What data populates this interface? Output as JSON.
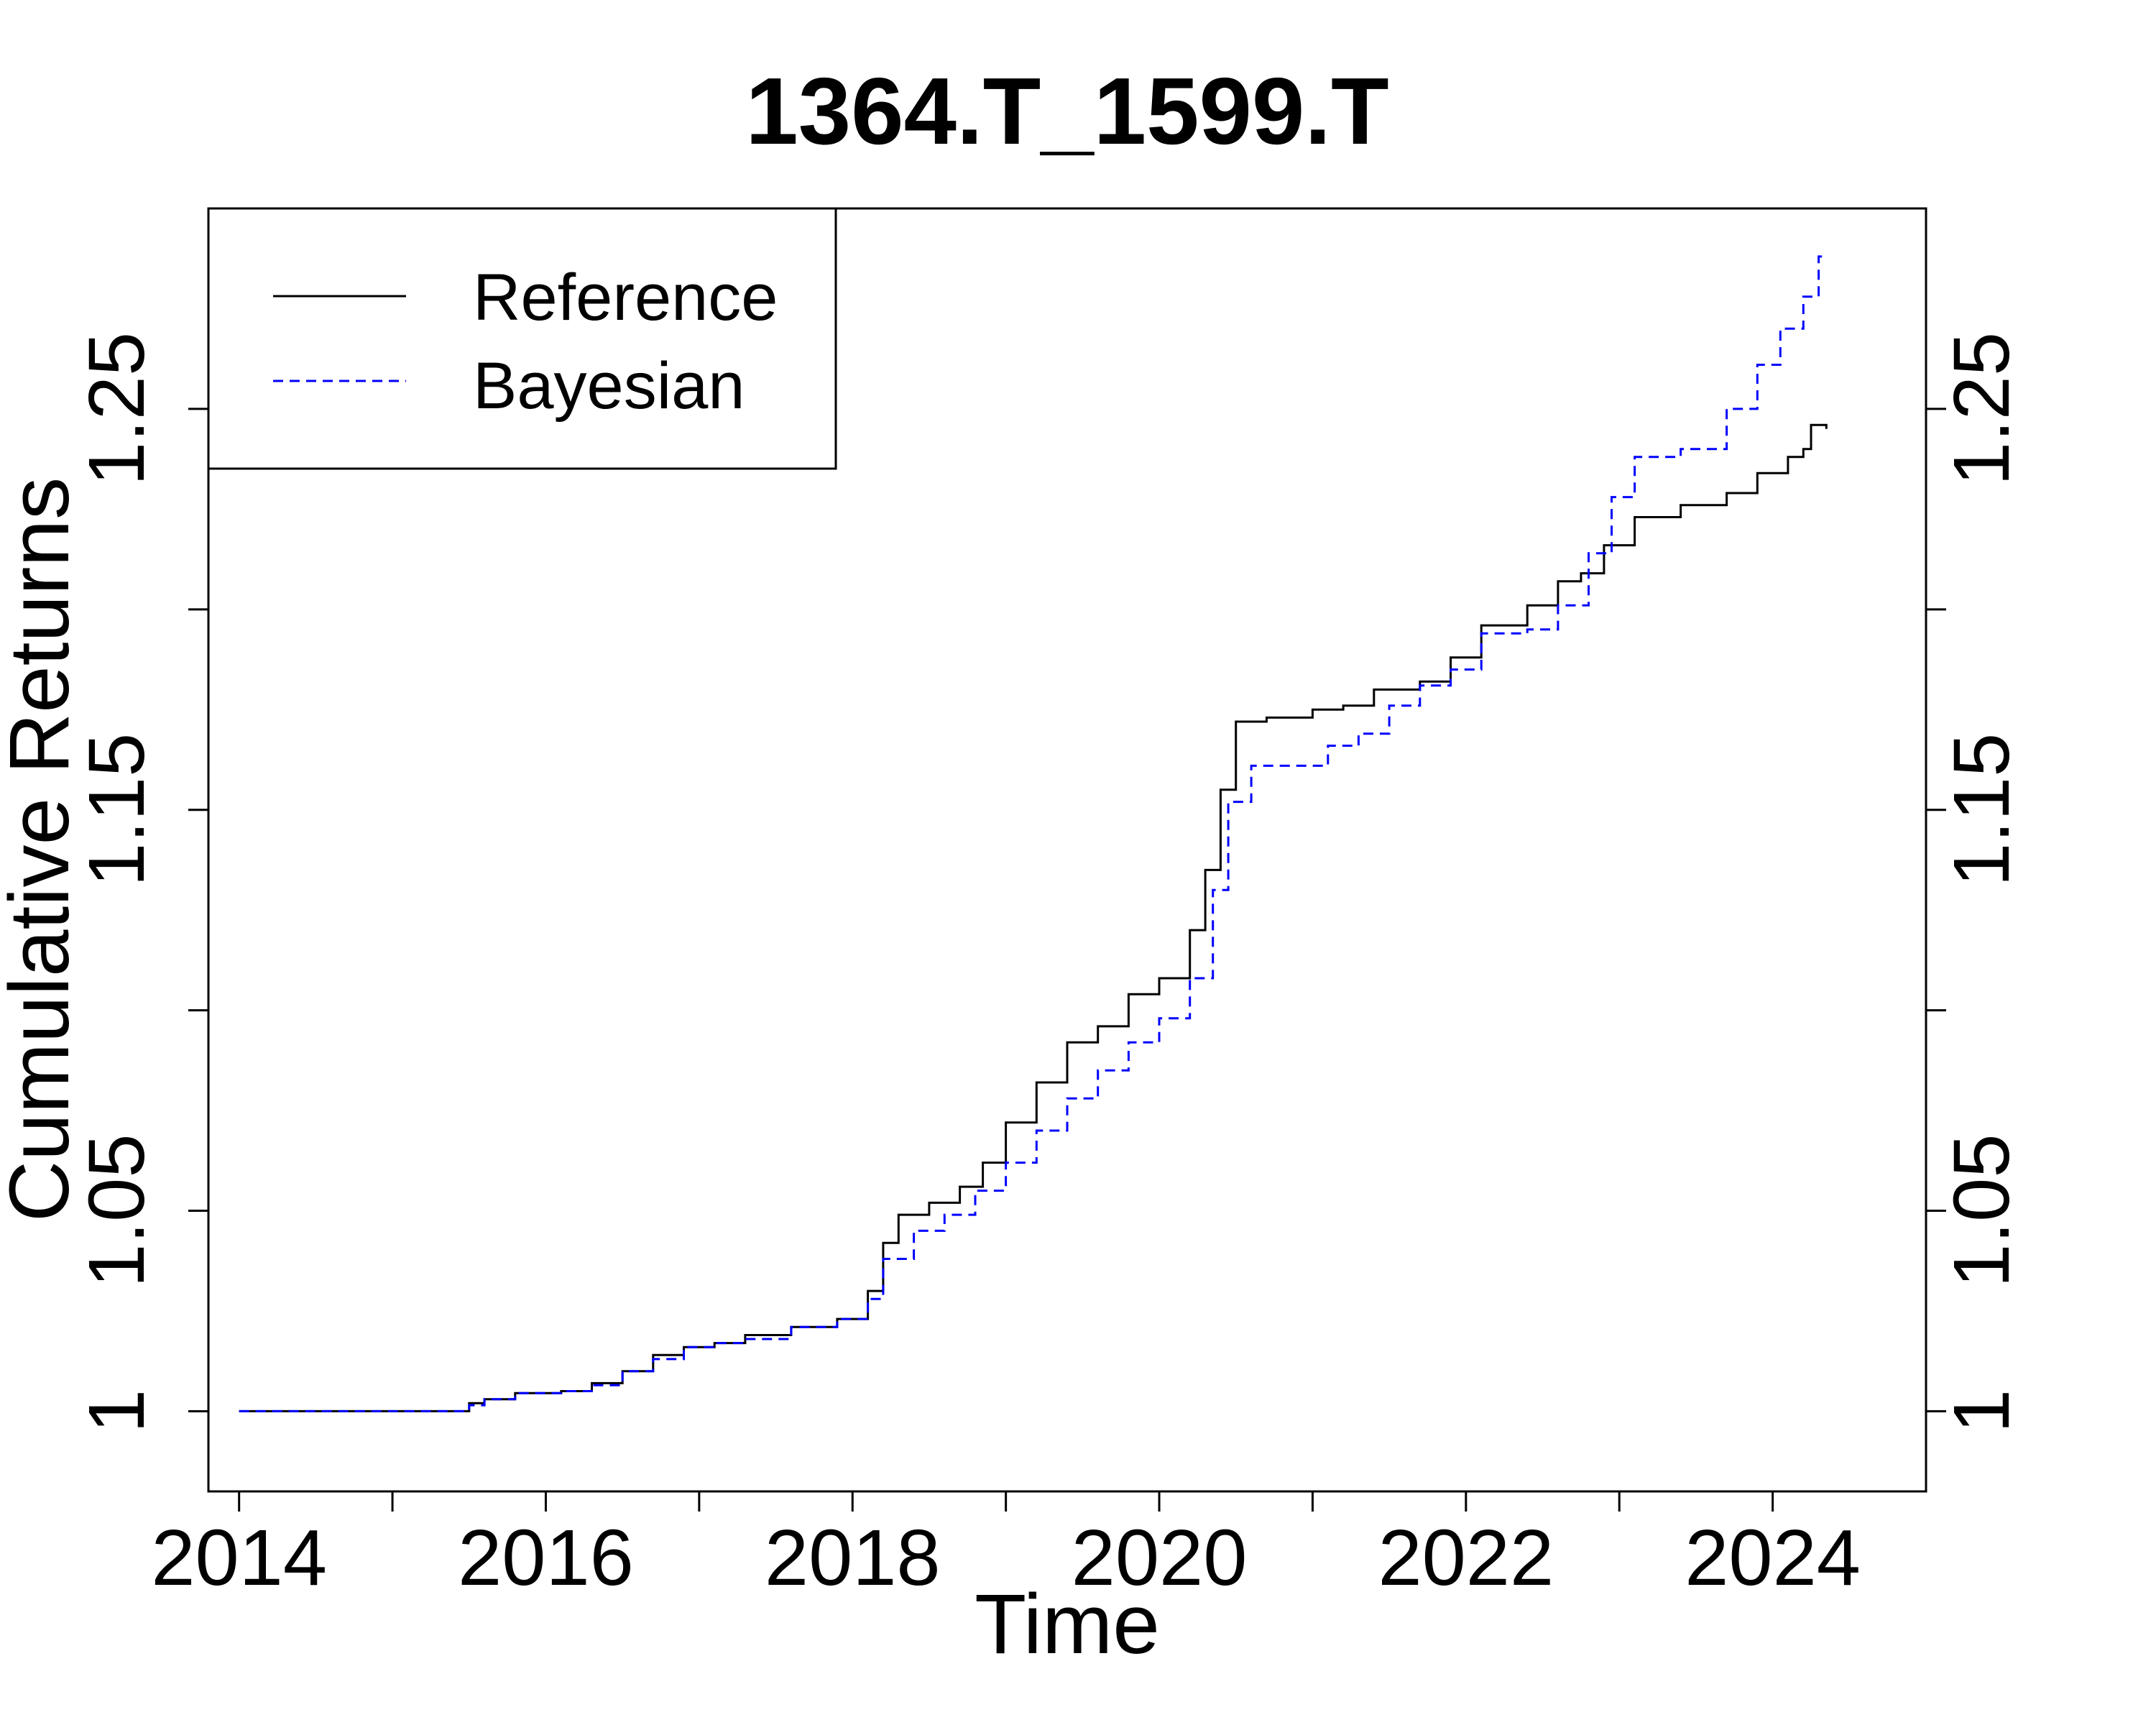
{
  "chart_data": {
    "type": "line",
    "title": "1364.T_1599.T",
    "xlabel": "Time",
    "ylabel": "Cumulative Returns",
    "xlim": [
      2013.8,
      2025.0
    ],
    "ylim": [
      0.98,
      1.3
    ],
    "x_ticks": [
      2014,
      2015,
      2016,
      2017,
      2018,
      2019,
      2020,
      2021,
      2022,
      2023,
      2024
    ],
    "x_tick_labels": [
      {
        "value": 2014,
        "label": "2014"
      },
      {
        "value": 2016,
        "label": "2016"
      },
      {
        "value": 2018,
        "label": "2018"
      },
      {
        "value": 2020,
        "label": "2020"
      },
      {
        "value": 2022,
        "label": "2022"
      },
      {
        "value": 2024,
        "label": "2024"
      }
    ],
    "y_ticks": [
      1.0,
      1.05,
      1.1,
      1.15,
      1.2,
      1.25
    ],
    "y_tick_labels": [
      {
        "value": 1.0,
        "label": "1"
      },
      {
        "value": 1.05,
        "label": "1.05"
      },
      {
        "value": 1.15,
        "label": "1.15"
      },
      {
        "value": 1.25,
        "label": "1.25"
      }
    ],
    "grid": false,
    "legend_position": "top-left",
    "series": [
      {
        "name": "Reference",
        "color": "#000000",
        "style": "solid",
        "points": [
          [
            2014.0,
            1.0
          ],
          [
            2015.0,
            1.0
          ],
          [
            2015.3,
            1.0
          ],
          [
            2015.5,
            1.002
          ],
          [
            2015.6,
            1.003
          ],
          [
            2015.8,
            1.0045
          ],
          [
            2016.1,
            1.005
          ],
          [
            2016.3,
            1.007
          ],
          [
            2016.5,
            1.01
          ],
          [
            2016.7,
            1.014
          ],
          [
            2016.9,
            1.016
          ],
          [
            2017.1,
            1.017
          ],
          [
            2017.3,
            1.019
          ],
          [
            2017.6,
            1.021
          ],
          [
            2017.9,
            1.023
          ],
          [
            2018.0,
            1.023
          ],
          [
            2018.1,
            1.03
          ],
          [
            2018.2,
            1.042
          ],
          [
            2018.3,
            1.049
          ],
          [
            2018.5,
            1.052
          ],
          [
            2018.7,
            1.056
          ],
          [
            2018.85,
            1.062
          ],
          [
            2019.0,
            1.072
          ],
          [
            2019.2,
            1.082
          ],
          [
            2019.4,
            1.092
          ],
          [
            2019.6,
            1.096
          ],
          [
            2019.8,
            1.104
          ],
          [
            2020.0,
            1.108
          ],
          [
            2020.2,
            1.12
          ],
          [
            2020.3,
            1.135
          ],
          [
            2020.4,
            1.155
          ],
          [
            2020.5,
            1.172
          ],
          [
            2020.7,
            1.173
          ],
          [
            2021.0,
            1.175
          ],
          [
            2021.2,
            1.176
          ],
          [
            2021.4,
            1.18
          ],
          [
            2021.7,
            1.182
          ],
          [
            2021.9,
            1.188
          ],
          [
            2022.1,
            1.196
          ],
          [
            2022.4,
            1.201
          ],
          [
            2022.6,
            1.207
          ],
          [
            2022.75,
            1.209
          ],
          [
            2022.9,
            1.216
          ],
          [
            2023.1,
            1.223
          ],
          [
            2023.4,
            1.226
          ],
          [
            2023.7,
            1.229
          ],
          [
            2023.9,
            1.234
          ],
          [
            2024.1,
            1.238
          ],
          [
            2024.2,
            1.24
          ],
          [
            2024.25,
            1.246
          ],
          [
            2024.35,
            1.245
          ]
        ]
      },
      {
        "name": "Bayesian",
        "color": "#0000ff",
        "style": "dashed",
        "points": [
          [
            2014.0,
            1.0
          ],
          [
            2015.0,
            1.0
          ],
          [
            2015.3,
            1.0
          ],
          [
            2015.5,
            1.0015
          ],
          [
            2015.6,
            1.003
          ],
          [
            2015.8,
            1.0045
          ],
          [
            2016.1,
            1.005
          ],
          [
            2016.3,
            1.0065
          ],
          [
            2016.5,
            1.01
          ],
          [
            2016.7,
            1.013
          ],
          [
            2016.9,
            1.016
          ],
          [
            2017.1,
            1.017
          ],
          [
            2017.3,
            1.018
          ],
          [
            2017.6,
            1.021
          ],
          [
            2017.9,
            1.023
          ],
          [
            2018.0,
            1.023
          ],
          [
            2018.1,
            1.028
          ],
          [
            2018.2,
            1.038
          ],
          [
            2018.4,
            1.045
          ],
          [
            2018.6,
            1.049
          ],
          [
            2018.8,
            1.055
          ],
          [
            2019.0,
            1.062
          ],
          [
            2019.2,
            1.07
          ],
          [
            2019.4,
            1.078
          ],
          [
            2019.6,
            1.085
          ],
          [
            2019.8,
            1.092
          ],
          [
            2020.0,
            1.098
          ],
          [
            2020.2,
            1.108
          ],
          [
            2020.35,
            1.13
          ],
          [
            2020.45,
            1.152
          ],
          [
            2020.6,
            1.161
          ],
          [
            2020.9,
            1.161
          ],
          [
            2021.1,
            1.166
          ],
          [
            2021.3,
            1.169
          ],
          [
            2021.5,
            1.176
          ],
          [
            2021.7,
            1.181
          ],
          [
            2021.9,
            1.185
          ],
          [
            2022.1,
            1.194
          ],
          [
            2022.4,
            1.195
          ],
          [
            2022.6,
            1.201
          ],
          [
            2022.8,
            1.214
          ],
          [
            2022.95,
            1.228
          ],
          [
            2023.1,
            1.238
          ],
          [
            2023.4,
            1.24
          ],
          [
            2023.7,
            1.25
          ],
          [
            2023.9,
            1.261
          ],
          [
            2024.05,
            1.27
          ],
          [
            2024.2,
            1.278
          ],
          [
            2024.3,
            1.288
          ],
          [
            2024.35,
            1.288
          ]
        ]
      }
    ]
  }
}
